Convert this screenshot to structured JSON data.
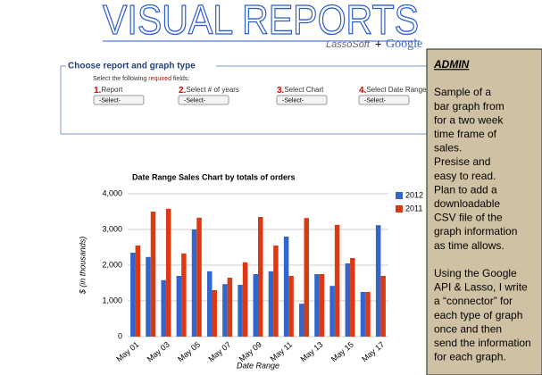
{
  "header": {
    "title": "VISUAL REPORTS",
    "partners": [
      "LassoSoft",
      "+",
      "Google"
    ]
  },
  "form": {
    "legend": "Choose report and graph type",
    "instruction": [
      "Select the following",
      "required",
      "fields:"
    ],
    "fields": [
      {
        "number": "1.",
        "label": "Report",
        "select": "-Select-"
      },
      {
        "number": "2.",
        "label": "Select # of years",
        "select": "-Select-"
      },
      {
        "number": "3.",
        "label": "Select Chart",
        "select": "-Select-"
      },
      {
        "number": "4.",
        "label": "Select Date Range",
        "select": "-Select-"
      }
    ]
  },
  "chart_data": {
    "type": "bar",
    "title": "Date Range Sales Chart by totals of orders",
    "x_label": "Date Range",
    "y_label": "$ (in thousands)",
    "categories": [
      "May 01",
      null,
      "May 03",
      null,
      "May 05",
      null,
      "May 07",
      null,
      "May 09",
      null,
      "May 11",
      null,
      "May 13",
      null,
      "May 15",
      null,
      "May 17"
    ],
    "series": [
      {
        "name": "2012",
        "color": "#3366cc",
        "values": [
          2350,
          2230,
          1580,
          1700,
          3000,
          1830,
          1470,
          1450,
          1750,
          1830,
          2800,
          920,
          1750,
          1420,
          2050,
          1250,
          3120
        ]
      },
      {
        "name": "2011",
        "color": "#dc3912",
        "values": [
          2550,
          3500,
          3580,
          2330,
          3330,
          1300,
          1650,
          2080,
          3350,
          2550,
          1700,
          3320,
          1750,
          3130,
          2200,
          1250,
          1700
        ]
      }
    ],
    "ylim": [
      0,
      4000
    ],
    "yticks": [
      0,
      {
        "value": 1000,
        "label": "1,000"
      },
      {
        "value": 2000,
        "label": "2,000"
      },
      {
        "value": 3000,
        "label": "3,000"
      },
      {
        "value": 4000,
        "label": "4,000"
      }
    ],
    "grid": true,
    "legend": "right"
  },
  "admin": {
    "title": "ADMIN",
    "paragraphs": [
      [
        "Sample of a",
        "bar graph from",
        "for a two week",
        "time frame of",
        "sales.",
        "Presise and",
        "easy to read.",
        "Plan to add a",
        "downloadable",
        "CSV file of the",
        "graph information",
        "as time allows."
      ],
      [
        "Using the Google",
        "API & Lasso, I write",
        "a “connector” for",
        "each type of graph",
        "once and then",
        "send the information",
        "for each graph."
      ]
    ]
  }
}
